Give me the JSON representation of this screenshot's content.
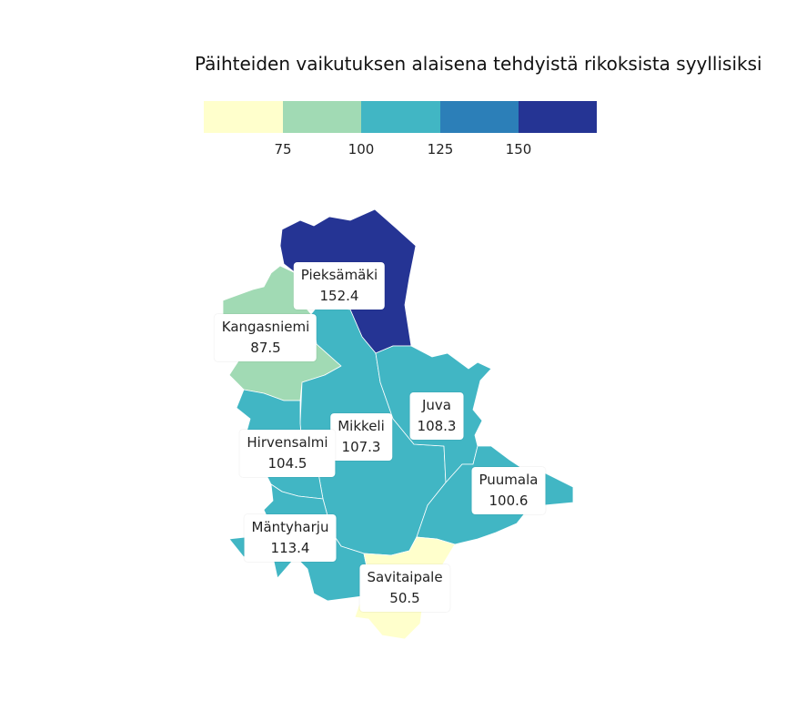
{
  "title": "Päihteiden vaikutuksen alaisena tehdyistä rikoksista syyllisiksi",
  "legend": {
    "colors": [
      "#ffffcc",
      "#a1dab4",
      "#41b6c4",
      "#2c7fb8",
      "#253494"
    ],
    "ticks": [
      "75",
      "100",
      "125",
      "150"
    ]
  },
  "regions": [
    {
      "name": "Pieksämäki",
      "value": "152.4",
      "color": "#253494"
    },
    {
      "name": "Kangasniemi",
      "value": "87.5",
      "color": "#a1dab4"
    },
    {
      "name": "Mikkeli",
      "value": "107.3",
      "color": "#41b6c4"
    },
    {
      "name": "Hirvensalmi",
      "value": "104.5",
      "color": "#41b6c4"
    },
    {
      "name": "Juva",
      "value": "108.3",
      "color": "#41b6c4"
    },
    {
      "name": "Puumala",
      "value": "100.6",
      "color": "#41b6c4"
    },
    {
      "name": "Mäntyharju",
      "value": "113.4",
      "color": "#41b6c4"
    },
    {
      "name": "Savitaipale",
      "value": "50.5",
      "color": "#ffffcc"
    }
  ]
}
